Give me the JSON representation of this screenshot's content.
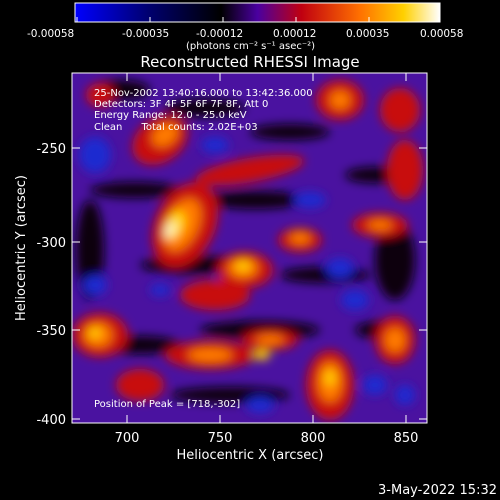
{
  "colorbar": {
    "ticks": [
      "-0.00058",
      "-0.00035",
      "-0.00012",
      "0.00012",
      "0.00035",
      "0.00058"
    ],
    "units": "(photons cm⁻² s⁻¹ asec⁻²)",
    "stops": [
      "#0000ff",
      "#000060",
      "#000000",
      "#5a00b0",
      "#c00000",
      "#ff6a00",
      "#ffc000",
      "#ffffff"
    ]
  },
  "title": "Reconstructed RHESSI Image",
  "info": {
    "line1": "25-Nov-2002 13:40:16.000 to 13:42:36.000",
    "line2": "Detectors: 3F 4F 5F 6F 7F 8F, Att 0",
    "line3": "Energy Range: 12.0 - 25.0 keV",
    "line4": "Clean      Total counts: 2.02E+03"
  },
  "peak_label": "Position of Peak = [718,-302]",
  "x_axis": {
    "label": "Heliocentric X (arcsec)",
    "ticks": [
      "700",
      "750",
      "800",
      "850"
    ],
    "range": [
      670,
      860
    ]
  },
  "y_axis": {
    "label": "Heliocentric Y (arcsec)",
    "ticks": [
      "-250",
      "-300",
      "-350",
      "-400"
    ],
    "range": [
      -402,
      -222
    ]
  },
  "footer_date": "3-May-2022 15:32",
  "colors": {
    "background": "#000000",
    "text": "#ffffff"
  }
}
